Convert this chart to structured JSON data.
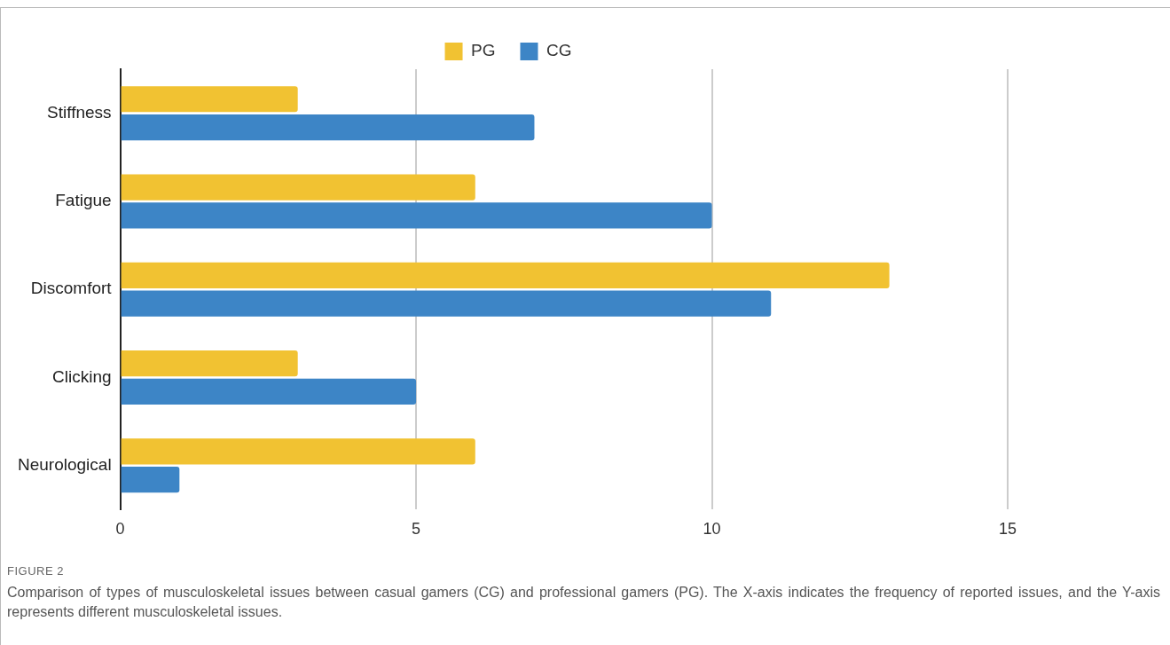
{
  "chart_data": {
    "type": "bar",
    "orientation": "horizontal",
    "categories": [
      "Stiffness",
      "Fatigue",
      "Discomfort",
      "Clicking",
      "Neurological"
    ],
    "series": [
      {
        "name": "PG",
        "color": "#f1c232",
        "values": [
          3,
          6,
          13,
          3,
          6
        ]
      },
      {
        "name": "CG",
        "color": "#3d85c6",
        "values": [
          7,
          10,
          11,
          5,
          1
        ]
      }
    ],
    "xlim": [
      0,
      15
    ],
    "xticks": [
      0,
      5,
      10,
      15
    ],
    "grid": "x",
    "legend": "top",
    "annotations": [
      "FIGURE 2",
      "Comparison of types of musculoskeletal issues between casual gamers (CG) and professional gamers (PG). The X-axis indicates the frequency of reported issues, and the Y-axis represents different musculoskeletal issues."
    ]
  }
}
